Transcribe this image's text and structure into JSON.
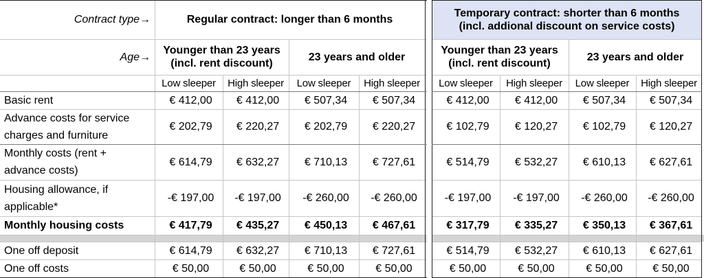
{
  "header": {
    "contract_type_label": "Contract type→",
    "age_label": "Age→",
    "regular_contract": "Regular contract: longer than 6 months",
    "temporary_contract_line1": "Temporary contract: shorter than 6 months",
    "temporary_contract_line2": "(incl. addional discount on service costs)",
    "younger_line1": "Younger than 23 years",
    "younger_line2": "(incl. rent discount)",
    "older": "23 years and older",
    "sleepers": [
      "Low sleeper",
      "High sleeper",
      "Low sleeper",
      "High sleeper",
      "Low sleeper",
      "High sleeper",
      "Low sleeper",
      "High sleeper"
    ]
  },
  "rows": [
    {
      "label": "Basic rent",
      "label2": "",
      "values": [
        "€ 412,00",
        "€ 412,00",
        "€ 507,34",
        "€ 507,34",
        "€ 412,00",
        "€ 412,00",
        "€ 507,34",
        "€ 507,34"
      ]
    },
    {
      "label": "Advance costs for service",
      "label2": "charges and furniture",
      "values": [
        "€ 202,79",
        "€ 220,27",
        "€ 202,79",
        "€ 220,27",
        "€ 102,79",
        "€ 120,27",
        "€ 102,79",
        "€ 120,27"
      ]
    },
    {
      "label": "Monthly costs (rent +",
      "label2": "advance costs)",
      "values": [
        "€ 614,79",
        "€ 632,27",
        "€ 710,13",
        "€ 727,61",
        "€ 514,79",
        "€ 532,27",
        "€ 610,13",
        "€ 627,61"
      ]
    },
    {
      "label": "Housing allowance, if",
      "label2": "applicable*",
      "values": [
        "-€ 197,00",
        "-€ 197,00",
        "-€ 260,00",
        "-€ 260,00",
        "-€ 197,00",
        "-€ 197,00",
        "-€ 260,00",
        "-€ 260,00"
      ]
    },
    {
      "label": "Monthly housing costs",
      "label2": "",
      "values": [
        "€ 417,79",
        "€ 435,27",
        "€ 450,13",
        "€ 467,61",
        "€ 317,79",
        "€ 335,27",
        "€ 350,13",
        "€ 367,61"
      ]
    },
    {
      "label": "One off deposit",
      "label2": "",
      "values": [
        "€ 614,79",
        "€ 632,27",
        "€ 710,13",
        "€ 727,61",
        "€ 514,79",
        "€ 532,27",
        "€ 610,13",
        "€ 627,61"
      ]
    },
    {
      "label": "One off costs",
      "label2": "",
      "values": [
        "€ 50,00",
        "€ 50,00",
        "€ 50,00",
        "€ 50,00",
        "€ 50,00",
        "€ 50,00",
        "€ 50,00",
        "€ 50,00"
      ]
    }
  ],
  "colors": {
    "temporary_header_bg": "#dde3f4",
    "separator_band": "#d4d4d4",
    "grid": "#c6c6c6",
    "thick_border": "#202020"
  }
}
